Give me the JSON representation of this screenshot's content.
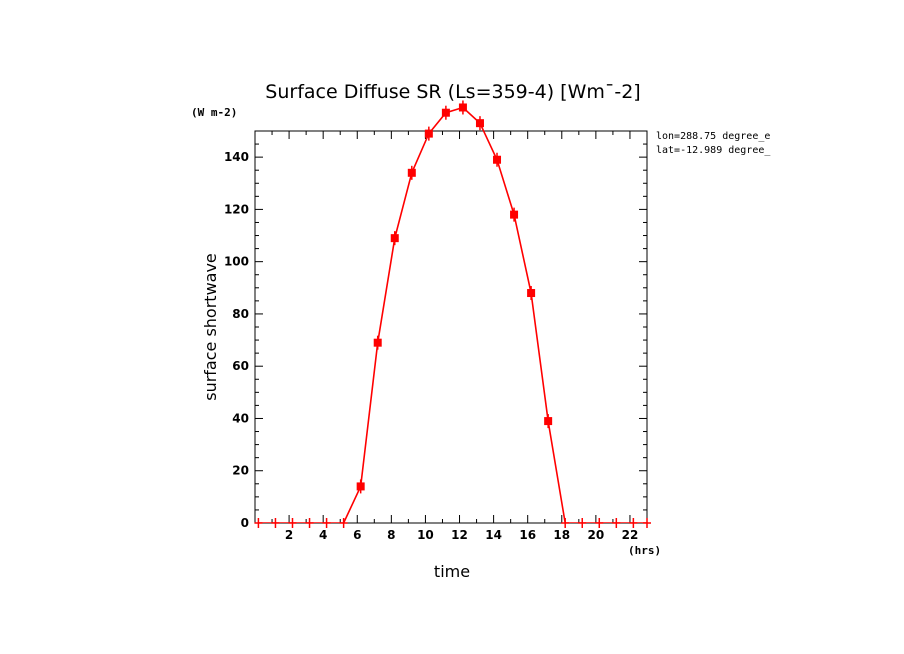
{
  "chart_data": {
    "type": "line",
    "title": "Surface Diffuse SR (Ls=359-4) [Wm¯-2]",
    "y_units_label": "(W m-2)",
    "x_units_label": "(hrs)",
    "xlabel": "time",
    "ylabel": "surface shortwave",
    "xlim": [
      0,
      23
    ],
    "ylim": [
      0,
      150
    ],
    "xticks": [
      2,
      4,
      6,
      8,
      10,
      12,
      14,
      16,
      18,
      20,
      22
    ],
    "xtick_labels": [
      "2",
      "4",
      "6",
      "8",
      "10",
      "12",
      "14",
      "16",
      "18",
      "20",
      "22"
    ],
    "yticks": [
      0,
      20,
      40,
      60,
      80,
      100,
      120,
      140
    ],
    "ytick_labels": [
      "0",
      "20",
      "40",
      "60",
      "80",
      "100",
      "120",
      "140"
    ],
    "annotations": [
      "lon=288.75 degree_e",
      "lat=-12.989 degree_"
    ],
    "series": [
      {
        "name": "surface shortwave",
        "color": "#ff0000",
        "x": [
          0.2,
          1.2,
          2.2,
          3.2,
          4.2,
          5.2,
          6.2,
          7.2,
          8.2,
          9.2,
          10.2,
          11.2,
          12.2,
          13.2,
          14.2,
          15.2,
          16.2,
          17.2,
          18.2,
          19.2,
          20.2,
          21.2,
          22.2,
          23.0
        ],
        "y": [
          0,
          0,
          0,
          0,
          0,
          0,
          14,
          69,
          109,
          134,
          149,
          157,
          159,
          153,
          139,
          118,
          88,
          39,
          0,
          0,
          0,
          0,
          0,
          0
        ]
      }
    ]
  }
}
